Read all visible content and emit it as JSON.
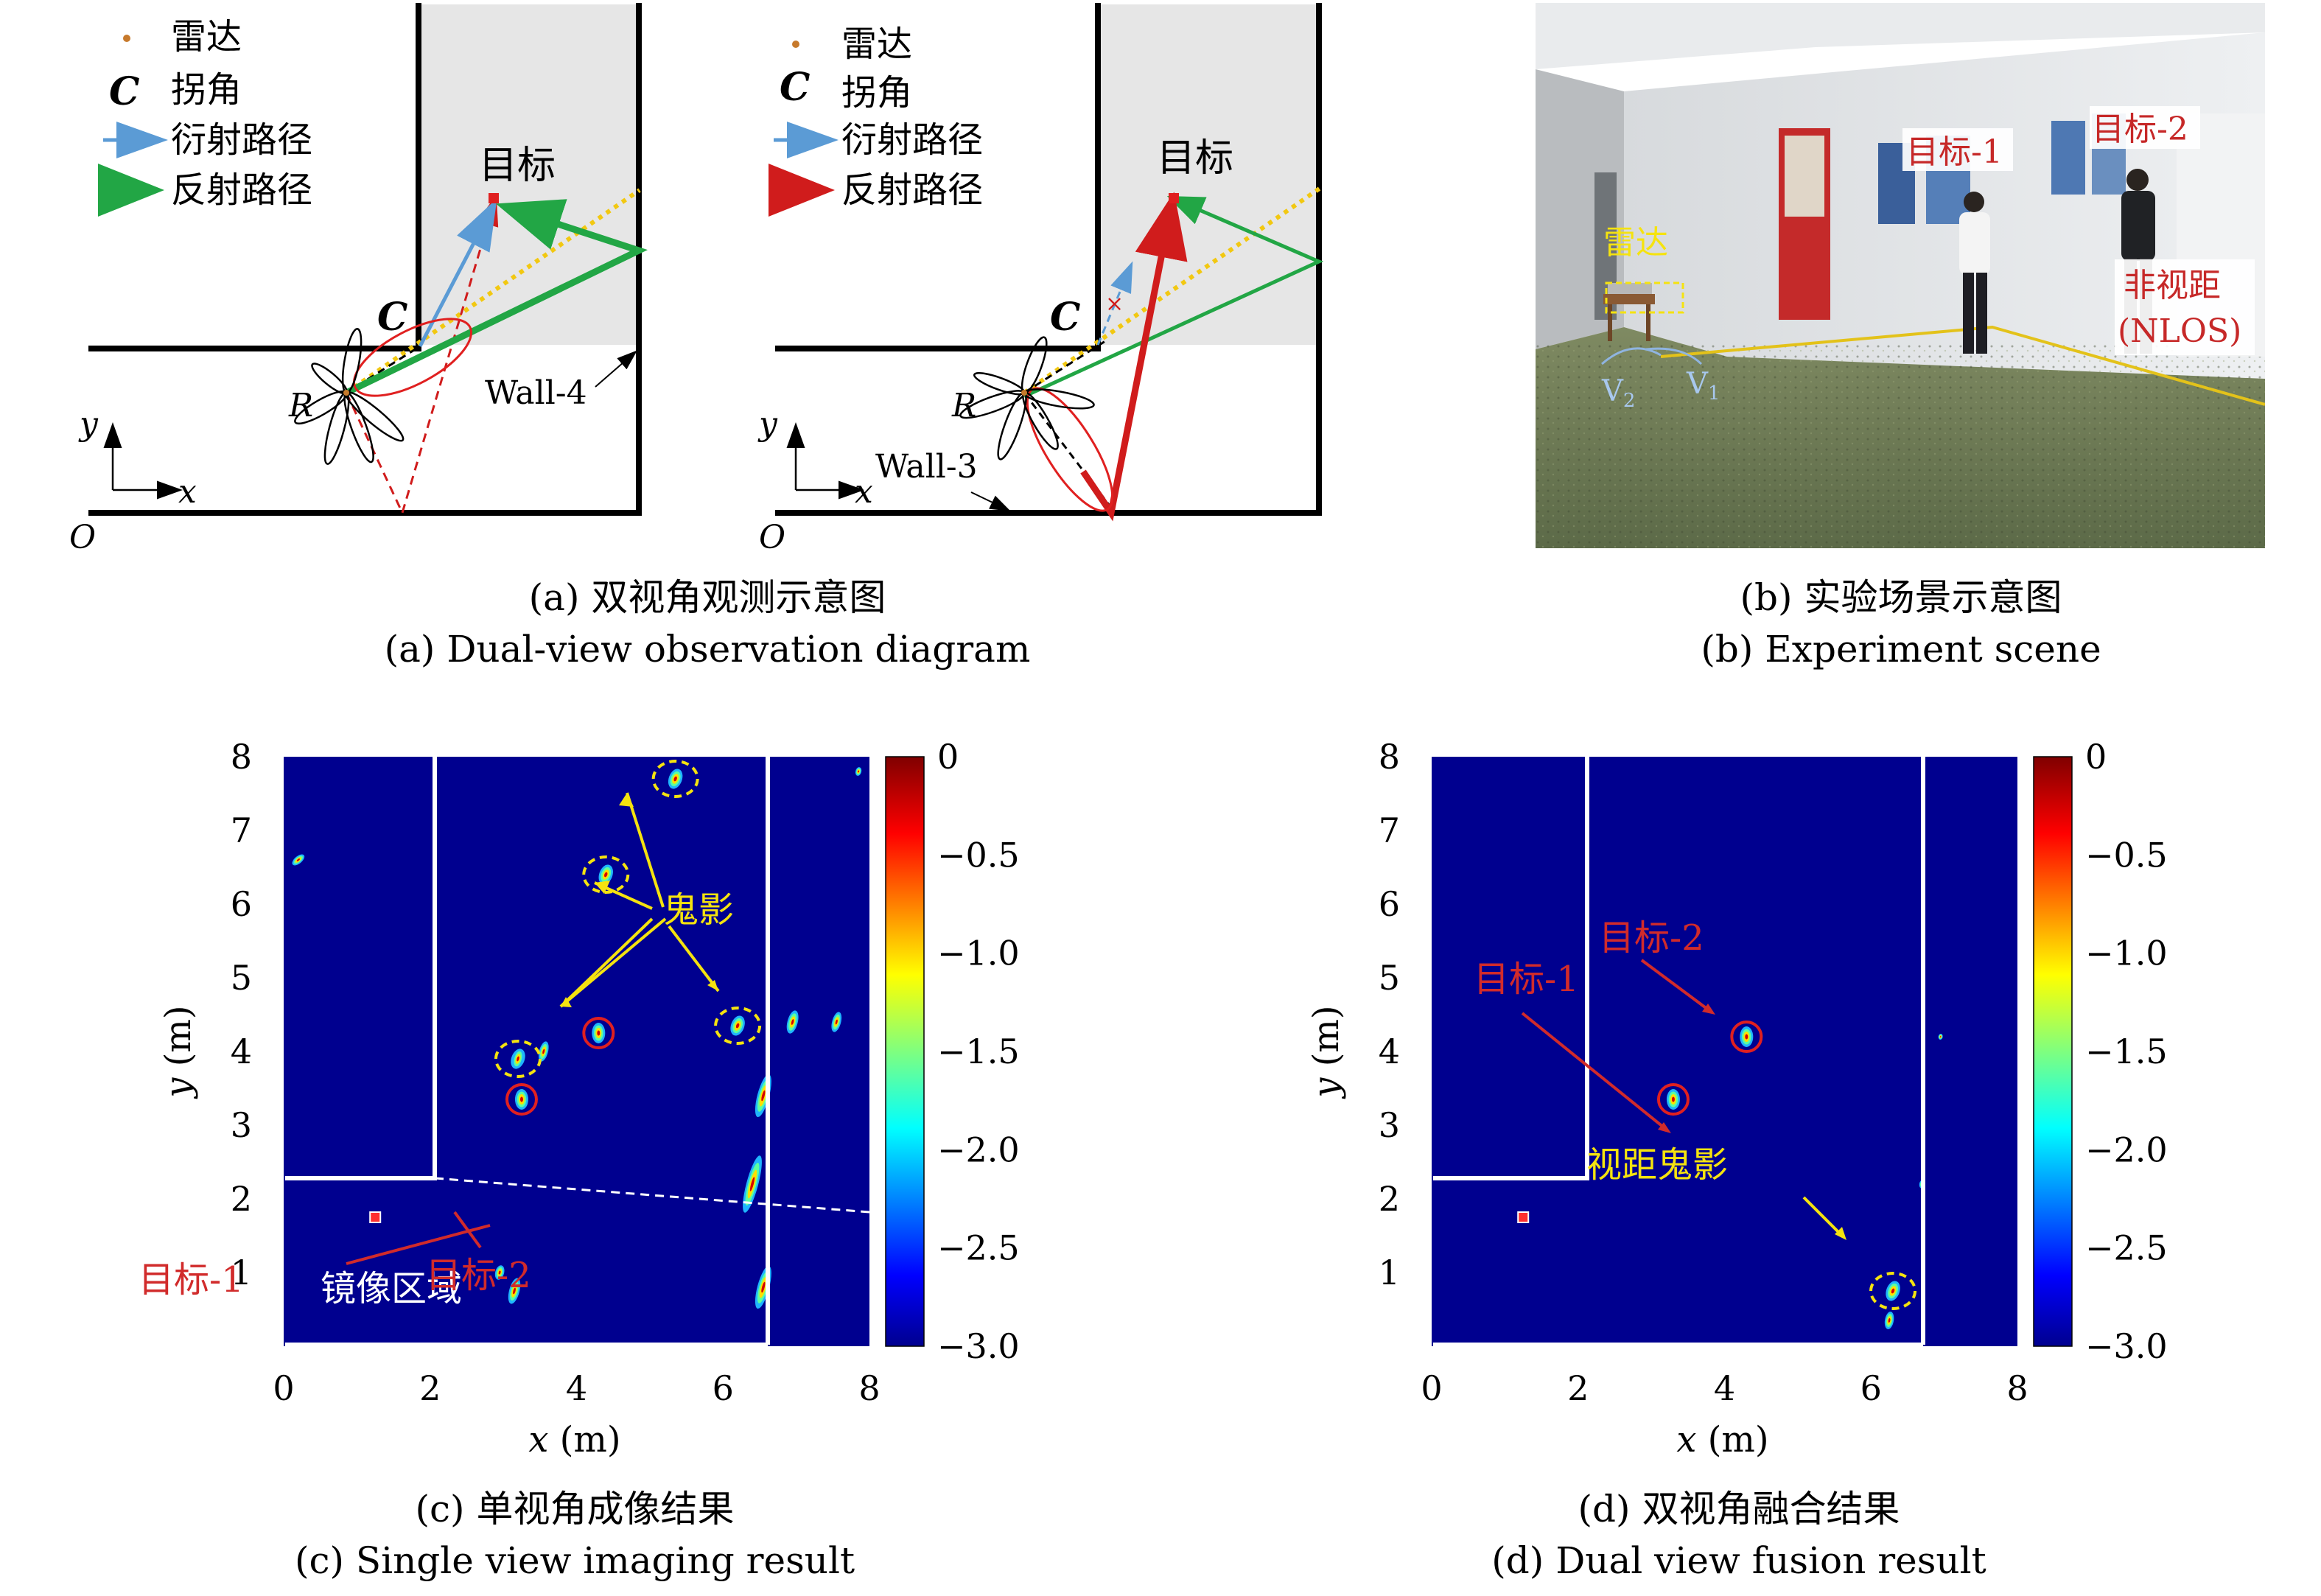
{
  "panel_a": {
    "legend": {
      "radar": "雷达",
      "corner_symbol": "C",
      "corner": "拐角",
      "diffraction": "衍射路径",
      "reflection": "反射路径"
    },
    "labels": {
      "target": "目标",
      "corner": "C",
      "radar": "R",
      "wall4": "Wall-4",
      "wall3": "Wall-3",
      "axis_x": "x",
      "axis_y": "y",
      "origin": "O"
    },
    "colors": {
      "diffraction": "#5b9bd5",
      "reflection_left": "#22a645",
      "reflection_right": "#d01c1c",
      "shade": "#e6e6e6",
      "ellipse": "#e02020",
      "target": "#e02020",
      "ray": "#f2c811"
    },
    "caption_cn": "(a) 双视角观测示意图",
    "caption_en": "(a) Dual-view observation diagram"
  },
  "panel_b": {
    "labels": {
      "target1": "目标-1",
      "target2": "目标-2",
      "radar": "雷达",
      "nlos_cn": "非视距",
      "nlos_en": "(NLOS)",
      "v1": "V",
      "v1_sub": "1",
      "v2": "V",
      "v2_sub": "2"
    },
    "caption_cn": "(b) 实验场景示意图",
    "caption_en": "(b) Experiment scene"
  },
  "panel_c": {
    "annotations": {
      "ghost": "鬼影",
      "target1": "目标-1",
      "target2": "目标-2",
      "mirror": "镜像区域"
    },
    "caption_cn": "(c) 单视角成像结果",
    "caption_en": "(c) Single view imaging result"
  },
  "panel_d": {
    "annotations": {
      "target1": "目标-1",
      "target2": "目标-2",
      "los_ghost": "视距鬼影"
    },
    "caption_cn": "(d) 双视角融合结果",
    "caption_en": "(d) Dual view fusion result"
  },
  "chart_data": [
    {
      "type": "heatmap",
      "xlabel": "x (m)",
      "ylabel": "y (m)",
      "xlim": [
        0,
        8
      ],
      "ylim": [
        0,
        8
      ],
      "x_ticks": [
        "0",
        "2",
        "4",
        "6",
        "8"
      ],
      "y_ticks": [
        "1",
        "2",
        "3",
        "4",
        "5",
        "6",
        "7",
        "8"
      ],
      "colorbar_ticks": [
        "0",
        "−0.5",
        "−1.0",
        "−1.5",
        "−2.0",
        "−2.5",
        "−3.0"
      ],
      "colorbar_range": [
        -3.0,
        0
      ],
      "targets": [
        {
          "name": "目标-1",
          "x": 3.25,
          "y": 3.35
        },
        {
          "name": "目标-2",
          "x": 4.3,
          "y": 4.25
        }
      ],
      "ghosts": [
        {
          "x": 5.35,
          "y": 7.7
        },
        {
          "x": 4.4,
          "y": 6.4
        },
        {
          "x": 6.2,
          "y": 4.35
        },
        {
          "x": 3.2,
          "y": 3.9
        }
      ],
      "radar": {
        "x": 1.25,
        "y": 1.75
      }
    },
    {
      "type": "heatmap",
      "xlabel": "x (m)",
      "ylabel": "y (m)",
      "xlim": [
        0,
        8
      ],
      "ylim": [
        0,
        8
      ],
      "x_ticks": [
        "0",
        "2",
        "4",
        "6",
        "8"
      ],
      "y_ticks": [
        "1",
        "2",
        "3",
        "4",
        "5",
        "6",
        "7",
        "8"
      ],
      "colorbar_ticks": [
        "0",
        "−0.5",
        "−1.0",
        "−1.5",
        "−2.0",
        "−2.5",
        "−3.0"
      ],
      "colorbar_range": [
        -3.0,
        0
      ],
      "targets": [
        {
          "name": "目标-1",
          "x": 3.3,
          "y": 3.35
        },
        {
          "name": "目标-2",
          "x": 4.3,
          "y": 4.2
        }
      ],
      "ghosts": [
        {
          "x": 6.3,
          "y": 0.75
        }
      ],
      "radar": {
        "x": 1.25,
        "y": 1.75
      }
    }
  ]
}
